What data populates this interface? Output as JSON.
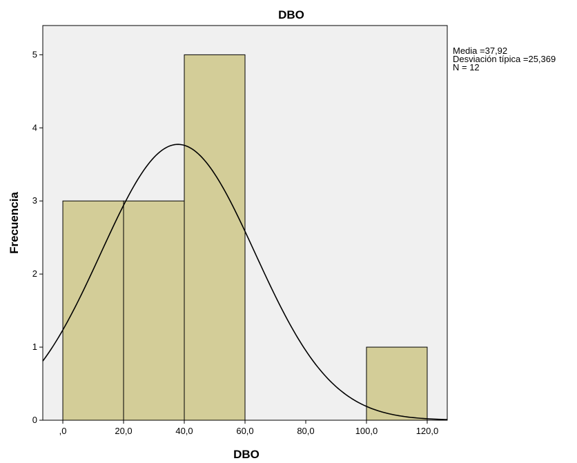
{
  "chart_data": {
    "type": "bar",
    "subtype": "histogram",
    "title": "DBO",
    "xlabel": "DBO",
    "ylabel": "Frecuencia",
    "bins": [
      {
        "from": 0,
        "to": 20,
        "count": 3
      },
      {
        "from": 20,
        "to": 40,
        "count": 3
      },
      {
        "from": 40,
        "to": 60,
        "count": 5
      },
      {
        "from": 60,
        "to": 80,
        "count": 0
      },
      {
        "from": 80,
        "to": 100,
        "count": 0
      },
      {
        "from": 100,
        "to": 120,
        "count": 1
      }
    ],
    "xlim": [
      -6.6,
      126.6
    ],
    "ylim": [
      0,
      5.4
    ],
    "x_ticks": [
      0,
      20,
      40,
      60,
      80,
      100,
      120
    ],
    "x_tick_labels": [
      ",0",
      "20,0",
      "40,0",
      "60,0",
      "80,0",
      "100,0",
      "120,0"
    ],
    "y_ticks": [
      0,
      1,
      2,
      3,
      4,
      5
    ],
    "y_tick_labels": [
      "0",
      "1",
      "2",
      "3",
      "4",
      "5"
    ],
    "normal_curve": {
      "mean": 37.92,
      "sd": 25.369,
      "n": 12,
      "bin_width": 20
    },
    "stats": {
      "mean_text": "Media =37,92",
      "sd_text": "Desviación típica =25,369",
      "n_text": "N = 12"
    },
    "grid": false,
    "colors": {
      "plot_background": "#f0f0f0",
      "bar_fill": "#d3cd98",
      "bar_stroke": "#000000",
      "curve": "#000000"
    }
  }
}
